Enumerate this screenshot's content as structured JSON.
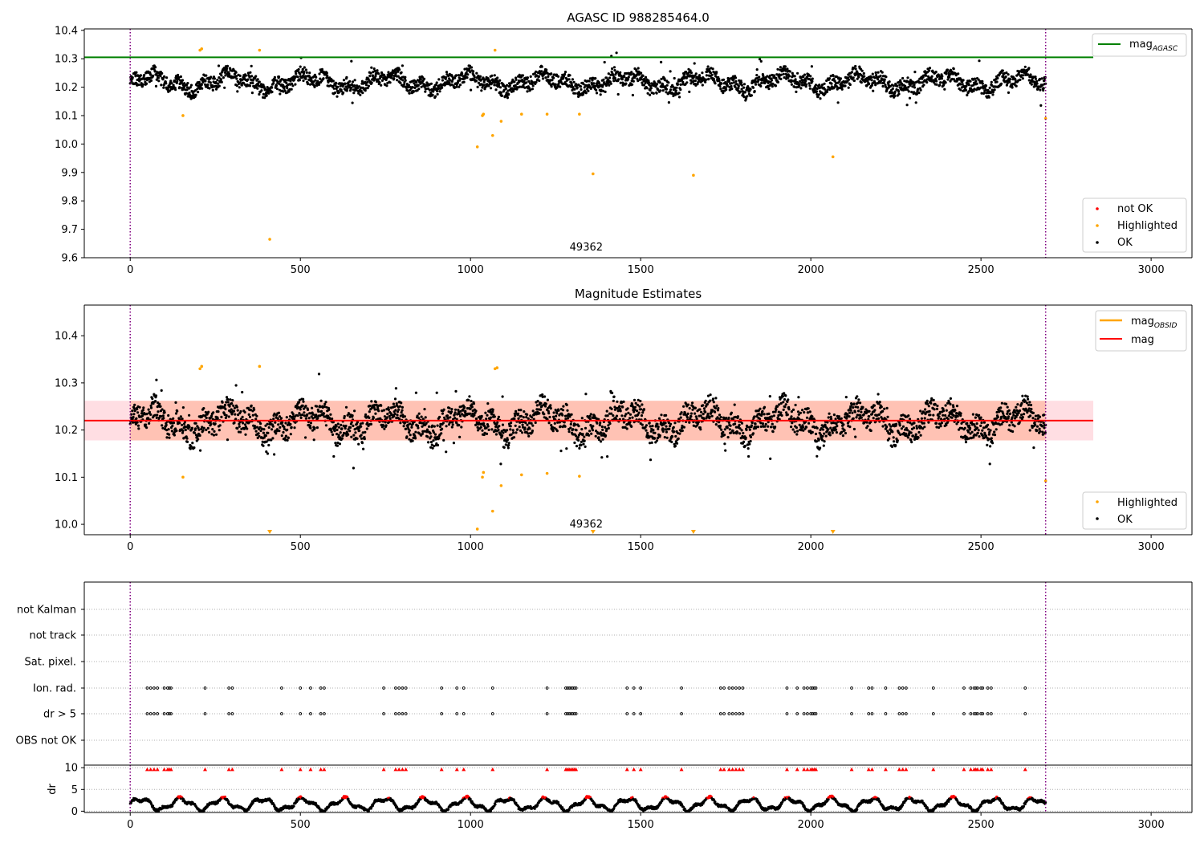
{
  "chart_data": [
    {
      "type": "scatter",
      "title": "AGASC ID 988285464.0",
      "xlim": [
        -135,
        3120
      ],
      "ylim": [
        9.6,
        10.405
      ],
      "x_ticks": [
        0,
        500,
        1000,
        1500,
        2000,
        2500,
        3000
      ],
      "y_ticks": [
        9.6,
        9.7,
        9.8,
        9.9,
        10.0,
        10.1,
        10.2,
        10.3,
        10.4
      ],
      "y_tick_labels": [
        "9.6",
        "9.7",
        "9.8",
        "9.9",
        "10.0",
        "10.1",
        "10.2",
        "10.3",
        "10.4"
      ],
      "annotation": {
        "text": "49362",
        "x": 1340
      },
      "vlines": [
        0,
        2690
      ],
      "hline": {
        "name": "mag",
        "subscript": "AGASC",
        "y": 10.305,
        "color": "#008000"
      },
      "ok_band": {
        "mean": 10.218,
        "amplitude": 0.035,
        "noise": 0.025
      },
      "series": [
        {
          "name": "not OK",
          "color": "#ff0000",
          "points": []
        },
        {
          "name": "Highlighted",
          "color": "#ffa500",
          "points": [
            [
              155,
              10.1
            ],
            [
              205,
              10.33
            ],
            [
              210,
              10.335
            ],
            [
              380,
              10.33
            ],
            [
              410,
              9.665
            ],
            [
              1020,
              9.99
            ],
            [
              1035,
              10.1
            ],
            [
              1038,
              10.105
            ],
            [
              1065,
              10.03
            ],
            [
              1072,
              10.33
            ],
            [
              1090,
              10.08
            ],
            [
              1150,
              10.105
            ],
            [
              1225,
              10.105
            ],
            [
              1320,
              10.105
            ],
            [
              1360,
              9.895
            ],
            [
              1655,
              9.89
            ],
            [
              2065,
              9.955
            ],
            [
              2690,
              10.09
            ]
          ]
        },
        {
          "name": "OK",
          "color": "#000000",
          "points": []
        }
      ],
      "legend_upper": "upper-right",
      "legend_lower": "lower-right"
    },
    {
      "type": "scatter",
      "title": "Magnitude Estimates",
      "xlim": [
        -135,
        3120
      ],
      "ylim": [
        9.978,
        10.465
      ],
      "x_ticks": [
        0,
        500,
        1000,
        1500,
        2000,
        2500,
        3000
      ],
      "y_ticks": [
        10.0,
        10.1,
        10.2,
        10.3,
        10.4
      ],
      "y_tick_labels": [
        "10.0",
        "10.1",
        "10.2",
        "10.3",
        "10.4"
      ],
      "annotation": {
        "text": "49362",
        "x": 1340
      },
      "vlines": [
        0,
        2690
      ],
      "lines": [
        {
          "name": "mag",
          "subscript": "OBSID",
          "color": "#ffa500"
        },
        {
          "name": "mag",
          "color": "#ff0000",
          "y": 10.22,
          "band": [
            10.178,
            10.262
          ]
        }
      ],
      "clipped_markers_x": [
        410,
        1360,
        1655,
        2065
      ],
      "series": [
        {
          "name": "Highlighted",
          "color": "#ffa500",
          "points": [
            [
              155,
              10.1
            ],
            [
              205,
              10.33
            ],
            [
              210,
              10.335
            ],
            [
              380,
              10.335
            ],
            [
              1020,
              9.99
            ],
            [
              1035,
              10.1
            ],
            [
              1038,
              10.11
            ],
            [
              1065,
              10.028
            ],
            [
              1072,
              10.33
            ],
            [
              1078,
              10.332
            ],
            [
              1090,
              10.082
            ],
            [
              1150,
              10.105
            ],
            [
              1225,
              10.108
            ],
            [
              1320,
              10.102
            ],
            [
              2690,
              10.092
            ]
          ]
        },
        {
          "name": "OK",
          "color": "#000000",
          "points": []
        }
      ],
      "legend_upper": "upper-right",
      "legend_lower": "lower-right"
    },
    {
      "type": "scatter",
      "xlim": [
        -135,
        3120
      ],
      "flag_labels": [
        "not Kalman",
        "not track",
        "Sat. pixel.",
        "Ion. rad.",
        "dr > 5",
        "OBS not OK"
      ],
      "flag_rows": {
        "Ion. rad.": [
          50,
          60,
          70,
          80,
          100,
          110,
          115,
          120,
          220,
          290,
          300,
          445,
          500,
          530,
          560,
          570,
          745,
          780,
          790,
          800,
          810,
          915,
          960,
          980,
          1065,
          1225,
          1280,
          1285,
          1290,
          1295,
          1300,
          1305,
          1310,
          1460,
          1480,
          1500,
          1620,
          1735,
          1745,
          1760,
          1770,
          1780,
          1790,
          1800,
          1930,
          1960,
          1980,
          1990,
          2000,
          2005,
          2010,
          2015,
          2120,
          2170,
          2180,
          2220,
          2260,
          2270,
          2280,
          2360,
          2450,
          2470,
          2480,
          2485,
          2490,
          2500,
          2505,
          2520,
          2530,
          2630
        ],
        "dr > 5": [
          50,
          60,
          70,
          80,
          100,
          110,
          115,
          120,
          220,
          290,
          300,
          445,
          500,
          530,
          560,
          570,
          745,
          780,
          790,
          800,
          810,
          915,
          960,
          980,
          1065,
          1225,
          1280,
          1285,
          1290,
          1295,
          1300,
          1305,
          1310,
          1460,
          1480,
          1500,
          1620,
          1735,
          1745,
          1760,
          1770,
          1780,
          1790,
          1800,
          1930,
          1960,
          1980,
          1990,
          2000,
          2005,
          2010,
          2015,
          2120,
          2170,
          2180,
          2220,
          2260,
          2270,
          2280,
          2360,
          2450,
          2470,
          2480,
          2485,
          2490,
          2500,
          2505,
          2520,
          2530,
          2630
        ]
      },
      "dr_axis": {
        "ylabel": "dr",
        "ylim": [
          -0.3,
          10.6
        ],
        "y_ticks": [
          0,
          5,
          10
        ],
        "y_tick_labels": [
          "0",
          "5",
          "10"
        ],
        "x_ticks": [
          0,
          500,
          1000,
          1500,
          2000,
          2500,
          3000
        ],
        "threshold": 3.0,
        "clip_marker_y": 9.6
      }
    }
  ]
}
